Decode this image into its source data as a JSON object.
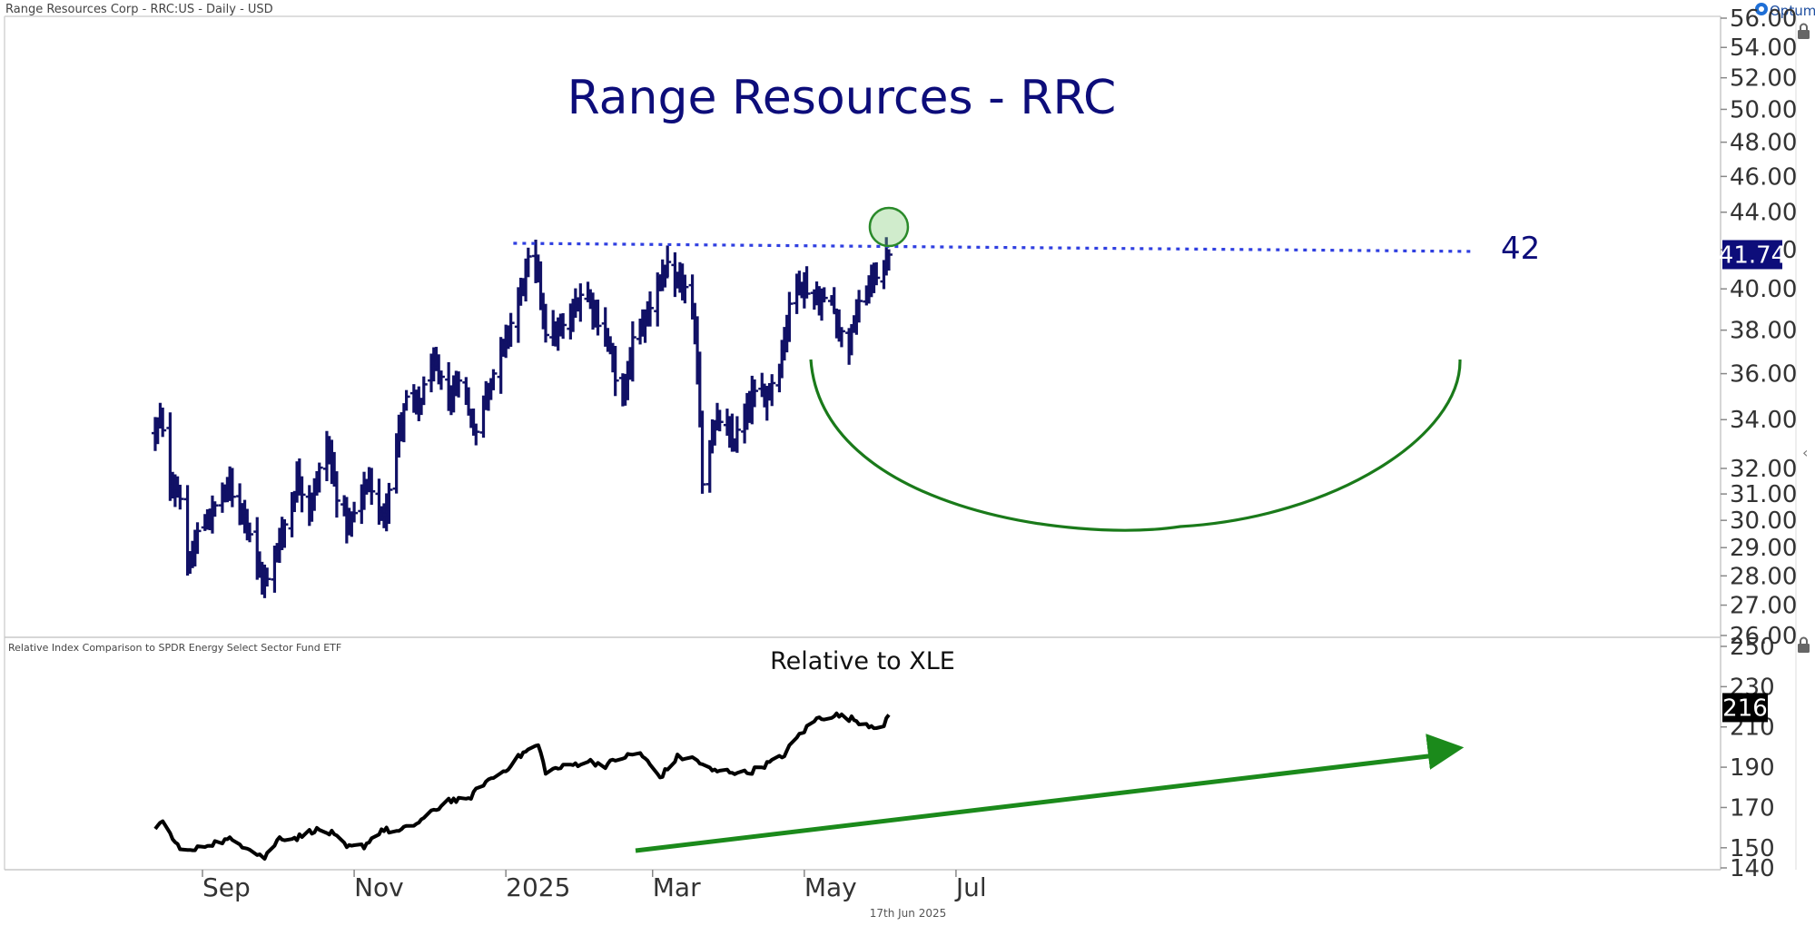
{
  "header": {
    "symbol_info": "Range Resources Corp - RRC:US - Daily - USD",
    "brand": "Optuma"
  },
  "footer": {
    "date": "17th Jun 2025"
  },
  "chart_data": [
    {
      "type": "bar",
      "subtype": "ohlc",
      "title": "Range Resources - RRC",
      "ylim": [
        26,
        56
      ],
      "y_scale": "log",
      "y_ticks": [
        26,
        27,
        28,
        29,
        30,
        31,
        32,
        34,
        36,
        38,
        40,
        42,
        44,
        46,
        48,
        50,
        52,
        54,
        56
      ],
      "x_ticks": [
        "Sep",
        "Nov",
        "2025",
        "Mar",
        "May",
        "Jul"
      ],
      "last_value": "41.74",
      "resistance_level": 42,
      "resistance_label": "42",
      "anchors": [
        [
          "2024-08-13",
          33.5
        ],
        [
          "2024-08-15",
          34.0
        ],
        [
          "2024-08-19",
          31.5
        ],
        [
          "2024-08-23",
          31.0
        ],
        [
          "2024-08-26",
          28.0
        ],
        [
          "2024-08-30",
          29.5
        ],
        [
          "2024-09-06",
          30.5
        ],
        [
          "2024-09-11",
          31.3
        ],
        [
          "2024-09-18",
          30.3
        ],
        [
          "2024-09-24",
          28.0
        ],
        [
          "2024-09-27",
          27.8
        ],
        [
          "2024-10-02",
          29.3
        ],
        [
          "2024-10-07",
          30.7
        ],
        [
          "2024-10-09",
          31.6
        ],
        [
          "2024-10-14",
          30.6
        ],
        [
          "2024-10-17",
          31.5
        ],
        [
          "2024-10-21",
          33.0
        ],
        [
          "2024-10-25",
          31.0
        ],
        [
          "2024-10-30",
          29.7
        ],
        [
          "2024-11-04",
          31.0
        ],
        [
          "2024-11-07",
          31.5
        ],
        [
          "2024-11-12",
          30.0
        ],
        [
          "2024-11-14",
          30.8
        ],
        [
          "2024-11-19",
          33.5
        ],
        [
          "2024-11-22",
          34.8
        ],
        [
          "2024-11-27",
          34.5
        ],
        [
          "2024-12-02",
          36.5
        ],
        [
          "2024-12-05",
          35.8
        ],
        [
          "2024-12-10",
          34.8
        ],
        [
          "2024-12-13",
          36.0
        ],
        [
          "2024-12-17",
          34.3
        ],
        [
          "2024-12-20",
          33.5
        ],
        [
          "2024-12-24",
          35.2
        ],
        [
          "2024-12-31",
          37.2
        ],
        [
          "2025-01-06",
          39.5
        ],
        [
          "2025-01-10",
          41.3
        ],
        [
          "2025-01-14",
          40.8
        ],
        [
          "2025-01-17",
          38.0
        ],
        [
          "2025-01-22",
          37.8
        ],
        [
          "2025-01-27",
          38.5
        ],
        [
          "2025-01-31",
          39.8
        ],
        [
          "2025-02-04",
          39.5
        ],
        [
          "2025-02-07",
          38.5
        ],
        [
          "2025-02-12",
          37.2
        ],
        [
          "2025-02-14",
          35.5
        ],
        [
          "2025-02-18",
          35.3
        ],
        [
          "2025-02-21",
          37.5
        ],
        [
          "2025-02-26",
          38.5
        ],
        [
          "2025-03-03",
          40.3
        ],
        [
          "2025-03-07",
          41.0
        ],
        [
          "2025-03-10",
          40.0
        ],
        [
          "2025-03-13",
          40.5
        ],
        [
          "2025-03-17",
          38.5
        ],
        [
          "2025-03-19",
          36.5
        ],
        [
          "2025-03-21",
          31.5
        ],
        [
          "2025-03-25",
          33.5
        ],
        [
          "2025-03-28",
          34.0
        ],
        [
          "2025-04-02",
          33.0
        ],
        [
          "2025-04-07",
          34.0
        ],
        [
          "2025-04-10",
          35.0
        ],
        [
          "2025-04-15",
          35.0
        ],
        [
          "2025-04-21",
          36.3
        ],
        [
          "2025-04-24",
          38.5
        ],
        [
          "2025-04-28",
          40.5
        ],
        [
          "2025-05-02",
          40.0
        ],
        [
          "2025-05-07",
          39.3
        ],
        [
          "2025-05-12",
          39.5
        ],
        [
          "2025-05-15",
          38.0
        ],
        [
          "2025-05-19",
          37.3
        ],
        [
          "2025-05-22",
          38.8
        ],
        [
          "2025-05-28",
          40.5
        ],
        [
          "2025-06-02",
          41.2
        ],
        [
          "2025-06-04",
          41.74
        ]
      ]
    },
    {
      "type": "line",
      "title": "Relative to XLE",
      "subtitle": "Relative Index Comparison to SPDR Energy Select Sector Fund ETF",
      "ylim": [
        140,
        250
      ],
      "y_ticks": [
        140,
        150,
        170,
        190,
        210,
        230,
        250
      ],
      "last_value": "216",
      "x": [
        "2024-08-13",
        "2024-08-16",
        "2024-08-21",
        "2024-08-27",
        "2024-09-04",
        "2024-09-12",
        "2024-09-20",
        "2024-09-26",
        "2024-10-02",
        "2024-10-09",
        "2024-10-16",
        "2024-10-23",
        "2024-10-29",
        "2024-11-05",
        "2024-11-12",
        "2024-11-19",
        "2024-11-26",
        "2024-12-03",
        "2024-12-09",
        "2024-12-16",
        "2024-12-23",
        "2024-12-31",
        "2025-01-08",
        "2025-01-14",
        "2025-01-17",
        "2025-01-24",
        "2025-02-03",
        "2025-02-10",
        "2025-02-17",
        "2025-02-24",
        "2025-03-04",
        "2025-03-11",
        "2025-03-18",
        "2025-03-25",
        "2025-04-01",
        "2025-04-08",
        "2025-04-15",
        "2025-04-22",
        "2025-04-29",
        "2025-05-06",
        "2025-05-13",
        "2025-05-20",
        "2025-05-27",
        "2025-06-02",
        "2025-06-04"
      ],
      "values": [
        158,
        164,
        152,
        148,
        152,
        154,
        150,
        145,
        155,
        155,
        159,
        157,
        150,
        151,
        159,
        158,
        162,
        168,
        174,
        173,
        182,
        188,
        197,
        201,
        188,
        190,
        193,
        191,
        195,
        197,
        185,
        195,
        194,
        188,
        188,
        187,
        191,
        195,
        206,
        214,
        216,
        214,
        211,
        210,
        216
      ]
    }
  ]
}
